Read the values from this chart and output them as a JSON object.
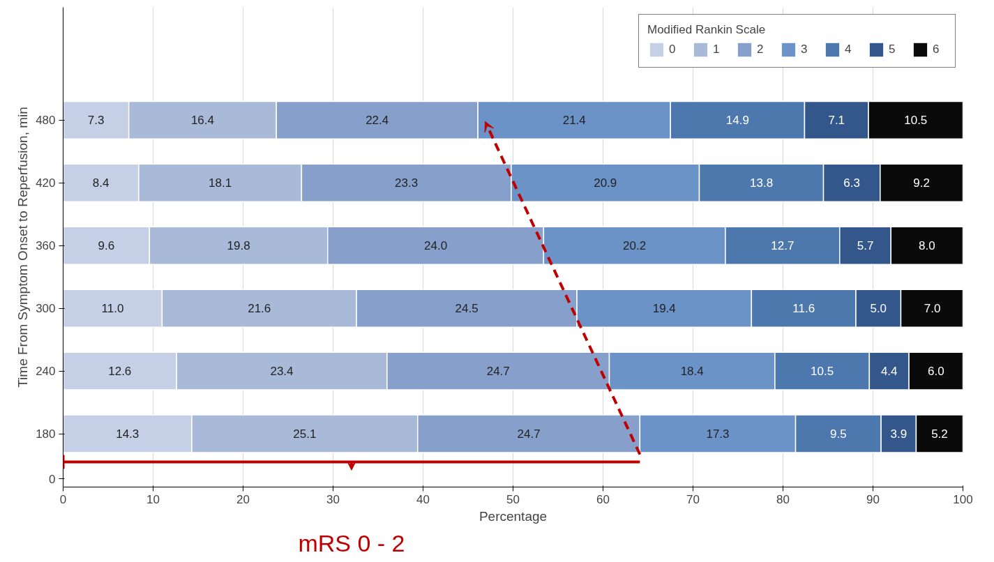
{
  "chart_data": {
    "type": "bar",
    "orientation": "horizontal",
    "stacked": true,
    "categories": [
      "480",
      "420",
      "360",
      "300",
      "240",
      "180"
    ],
    "xlim": [
      0,
      100
    ],
    "xticks": [
      0,
      10,
      20,
      30,
      40,
      50,
      60,
      70,
      80,
      90,
      100
    ],
    "xlabel": "Percentage",
    "ylabel": "Time From Symptom Onset to Reperfusion, min",
    "legend_title": "Modified Rankin Scale",
    "legend": "top right",
    "grid": "x",
    "value_labels": [
      [
        "7.3",
        "8.4",
        "9.6",
        "11.0",
        "12.6",
        "14.3"
      ],
      [
        "16.4",
        "18.1",
        "19.8",
        "21.6",
        "23.4",
        "25.1"
      ],
      [
        "22.4",
        "23.3",
        "24.0",
        "24.5",
        "24.7",
        "24.7"
      ],
      [
        "21.4",
        "20.9",
        "20.2",
        "19.4",
        "18.4",
        "17.3"
      ],
      [
        "14.9",
        "13.8",
        "12.7",
        "11.6",
        "10.5",
        "9.5"
      ],
      [
        "7.1",
        "6.3",
        "5.7",
        "5.0",
        "4.4",
        "3.9"
      ],
      [
        "10.5",
        "9.2",
        "8.0",
        "7.0",
        "6.0",
        "5.2"
      ]
    ],
    "annotations": [
      "0",
      "mRS 0 - 2"
    ],
    "series": [
      {
        "name": "0",
        "color": "#c5d0e6",
        "values": [
          7.3,
          8.4,
          9.6,
          11.0,
          12.6,
          14.3
        ]
      },
      {
        "name": "1",
        "color": "#a9bad9",
        "values": [
          16.4,
          18.1,
          19.8,
          21.6,
          23.4,
          25.1
        ]
      },
      {
        "name": "2",
        "color": "#87a0cb",
        "values": [
          22.4,
          23.3,
          24.0,
          24.5,
          24.7,
          24.7
        ]
      },
      {
        "name": "3",
        "color": "#6b93c8",
        "values": [
          21.4,
          20.9,
          20.2,
          19.4,
          18.4,
          17.3
        ]
      },
      {
        "name": "4",
        "color": "#4d78ae",
        "values": [
          14.9,
          13.8,
          12.7,
          11.6,
          10.5,
          9.5
        ]
      },
      {
        "name": "5",
        "color": "#33578a",
        "values": [
          7.1,
          6.3,
          5.7,
          5.0,
          4.4,
          3.9
        ]
      },
      {
        "name": "6",
        "color": "#0a0a0a",
        "values": [
          10.5,
          9.2,
          8.0,
          7.0,
          6.0,
          5.2
        ]
      }
    ]
  }
}
